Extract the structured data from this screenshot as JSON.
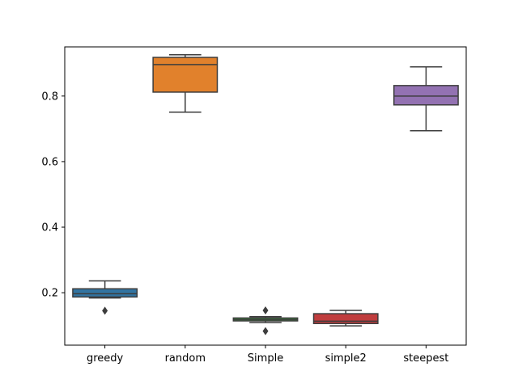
{
  "chart_data": {
    "type": "box",
    "title": "",
    "xlabel": "",
    "ylabel": "",
    "ylim": [
      0.04,
      0.95
    ],
    "yticks": [
      0.2,
      0.4,
      0.6,
      0.8
    ],
    "ytick_labels": [
      "0.2",
      "0.4",
      "0.6",
      "0.8"
    ],
    "grid": false,
    "categories": [
      "greedy",
      "random",
      "Simple",
      "simple2",
      "steepest"
    ],
    "boxes": [
      {
        "name": "greedy",
        "color": "#3274a1",
        "whisker_low": 0.184,
        "q1": 0.187,
        "median": 0.197,
        "q3": 0.212,
        "whisker_high": 0.236,
        "outliers": [
          0.145
        ]
      },
      {
        "name": "random",
        "color": "#e1812c",
        "whisker_low": 0.751,
        "q1": 0.812,
        "median": 0.896,
        "q3": 0.918,
        "whisker_high": 0.926,
        "outliers": []
      },
      {
        "name": "Simple",
        "color": "#3a923a",
        "whisker_low": 0.109,
        "q1": 0.114,
        "median": 0.118,
        "q3": 0.123,
        "whisker_high": 0.127,
        "outliers": [
          0.146,
          0.083
        ]
      },
      {
        "name": "simple2",
        "color": "#c03d3e",
        "whisker_low": 0.099,
        "q1": 0.106,
        "median": 0.113,
        "q3": 0.136,
        "whisker_high": 0.146,
        "outliers": []
      },
      {
        "name": "steepest",
        "color": "#9372b2",
        "whisker_low": 0.694,
        "q1": 0.773,
        "median": 0.8,
        "q3": 0.832,
        "whisker_high": 0.889,
        "outliers": []
      }
    ]
  }
}
